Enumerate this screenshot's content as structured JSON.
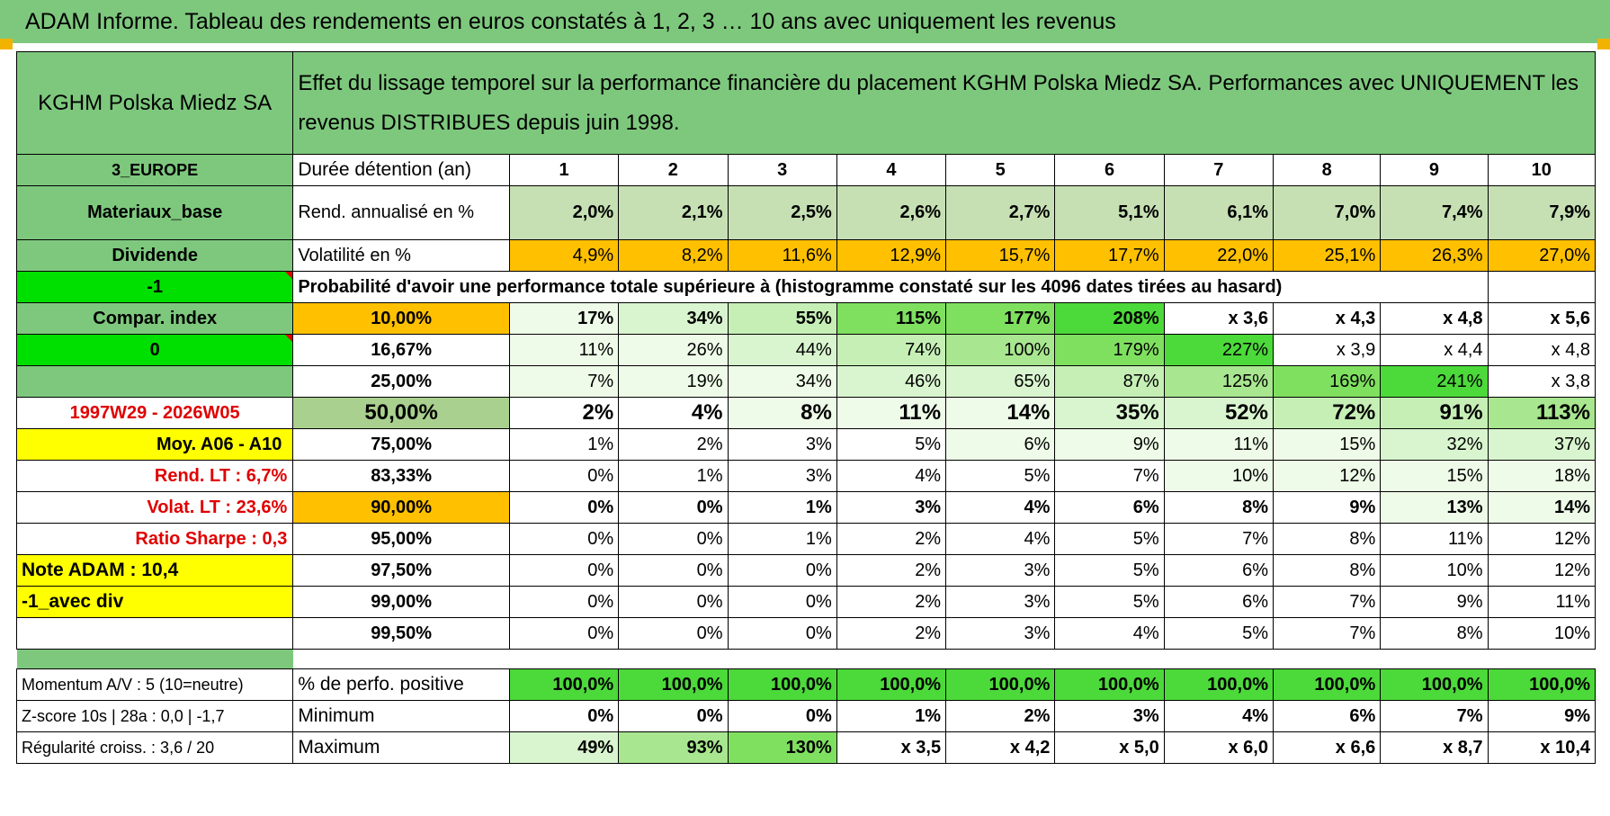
{
  "title": "ADAM Informe. Tableau des rendements en euros constatés à 1, 2, 3 … 10 ans avec uniquement les revenus",
  "header": {
    "company": "KGHM Polska Miedz SA",
    "description": "Effet du lissage temporel sur la performance financière du placement KGHM Polska Miedz SA. Performances avec UNIQUEMENT les revenus DISTRIBUES depuis juin 1998."
  },
  "left_labels": {
    "region": "3_EUROPE",
    "sector": "Materiaux_base",
    "type": "Dividende",
    "minus_one": "-1",
    "compar": "Compar. index",
    "zero": "0",
    "period": "1997W29 - 2026W05",
    "moy": "Moy. A06 - A10",
    "rend_lt": "Rend. LT :    6,7%",
    "volat_lt": "Volat. LT :    23,6%",
    "sharpe": "Ratio Sharpe :    0,3",
    "note": "Note ADAM : 10,4",
    "avec_div": "-1_avec div",
    "momentum": "Momentum A/V : 5 (10=neutre)",
    "zscore": "Z-score 10s | 28a : 0,0 | -1,7",
    "regularite": "Régularité croiss. : 3,6 / 20"
  },
  "row_labels": {
    "duree": "Durée détention (an)",
    "rend": "Rend. annualisé en %",
    "volat": "Volatilité en %",
    "proba": "Probabilité d'avoir une performance totale supérieure à (histogramme constaté sur les 4096 dates tirées au hasard)",
    "perf_pos": "% de perfo. positive",
    "minimum": "Minimum",
    "maximum": "Maximum"
  },
  "years": [
    "1",
    "2",
    "3",
    "4",
    "5",
    "6",
    "7",
    "8",
    "9",
    "10"
  ],
  "rend": [
    "2,0%",
    "2,1%",
    "2,5%",
    "2,6%",
    "2,7%",
    "5,1%",
    "6,1%",
    "7,0%",
    "7,4%",
    "7,9%"
  ],
  "volat": [
    "4,9%",
    "8,2%",
    "11,6%",
    "12,9%",
    "15,7%",
    "17,7%",
    "22,0%",
    "25,1%",
    "26,3%",
    "27,0%"
  ],
  "prob_rows": [
    {
      "pct": "10,00%",
      "values": [
        "17%",
        "34%",
        "55%",
        "115%",
        "177%",
        "208%",
        "x 3,6",
        "x 4,3",
        "x 4,8",
        "x 5,6"
      ]
    },
    {
      "pct": "16,67%",
      "values": [
        "11%",
        "26%",
        "44%",
        "74%",
        "100%",
        "179%",
        "227%",
        "x 3,9",
        "x 4,4",
        "x 4,8"
      ]
    },
    {
      "pct": "25,00%",
      "values": [
        "7%",
        "19%",
        "34%",
        "46%",
        "65%",
        "87%",
        "125%",
        "169%",
        "241%",
        "x 3,8"
      ]
    },
    {
      "pct": "50,00%",
      "values": [
        "2%",
        "4%",
        "8%",
        "11%",
        "14%",
        "35%",
        "52%",
        "72%",
        "91%",
        "113%"
      ]
    },
    {
      "pct": "75,00%",
      "values": [
        "1%",
        "2%",
        "3%",
        "5%",
        "6%",
        "9%",
        "11%",
        "15%",
        "32%",
        "37%"
      ]
    },
    {
      "pct": "83,33%",
      "values": [
        "0%",
        "1%",
        "3%",
        "4%",
        "5%",
        "7%",
        "10%",
        "12%",
        "15%",
        "18%"
      ]
    },
    {
      "pct": "90,00%",
      "values": [
        "0%",
        "0%",
        "1%",
        "3%",
        "4%",
        "6%",
        "8%",
        "9%",
        "13%",
        "14%"
      ]
    },
    {
      "pct": "95,00%",
      "values": [
        "0%",
        "0%",
        "1%",
        "2%",
        "4%",
        "5%",
        "7%",
        "8%",
        "11%",
        "12%"
      ]
    },
    {
      "pct": "97,50%",
      "values": [
        "0%",
        "0%",
        "0%",
        "2%",
        "3%",
        "5%",
        "6%",
        "8%",
        "10%",
        "12%"
      ]
    },
    {
      "pct": "99,00%",
      "values": [
        "0%",
        "0%",
        "0%",
        "2%",
        "3%",
        "5%",
        "6%",
        "7%",
        "9%",
        "11%"
      ]
    },
    {
      "pct": "99,50%",
      "values": [
        "0%",
        "0%",
        "0%",
        "2%",
        "3%",
        "4%",
        "5%",
        "7%",
        "8%",
        "10%"
      ]
    }
  ],
  "perf_pos": [
    "100,0%",
    "100,0%",
    "100,0%",
    "100,0%",
    "100,0%",
    "100,0%",
    "100,0%",
    "100,0%",
    "100,0%",
    "100,0%"
  ],
  "minimum": [
    "0%",
    "0%",
    "0%",
    "1%",
    "2%",
    "3%",
    "4%",
    "6%",
    "7%",
    "9%"
  ],
  "maximum": [
    "49%",
    "93%",
    "130%",
    "x 3,5",
    "x 4,2",
    "x 5,0",
    "x 6,0",
    "x 6,6",
    "x 8,7",
    "x 10,4"
  ],
  "colors": {
    "title_green": "#7ec87e",
    "orange": "#ffc000",
    "yellow": "#ffff00",
    "lime": "#00e000",
    "red_text": "#e00000"
  }
}
